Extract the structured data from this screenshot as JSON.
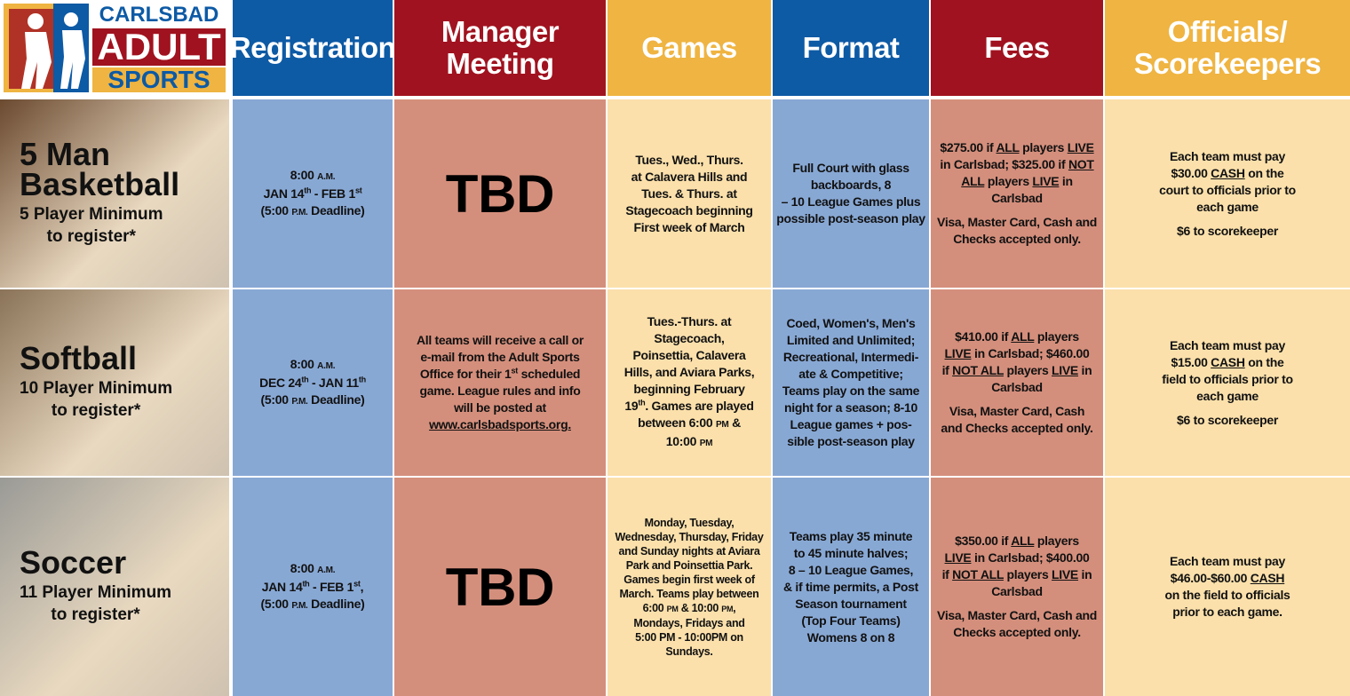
{
  "logo": {
    "lines": [
      "CARLSBAD",
      "ADULT",
      "SPORTS"
    ]
  },
  "columns": [
    [
      "Registration"
    ],
    [
      "Manager",
      "Meeting"
    ],
    [
      "Games"
    ],
    [
      "Format"
    ],
    [
      "Fees"
    ],
    [
      "Officials/",
      "Scorekeepers"
    ]
  ],
  "rows": [
    {
      "sport": [
        "5 Man",
        "Basketball"
      ],
      "note": [
        "5 Player Minimum",
        "to register*"
      ],
      "cells": [
        [
          [
            [
              "8:00 ",
              {
                "sc": "A.M."
              }
            ],
            [
              "JAN 14",
              {
                "sup": "th"
              },
              " - FEB 1",
              {
                "sup": "st"
              }
            ],
            [
              "(5:00 ",
              {
                "sc": "P.M."
              },
              " Deadline)"
            ]
          ]
        ],
        {
          "big": "TBD"
        },
        [
          [
            "Tues., Wed., Thurs.",
            "at Calavera Hills and",
            "Tues. & Thurs. at",
            "Stagecoach beginning",
            "First week of March"
          ]
        ],
        [
          [
            "Full Court with glass",
            "backboards, 8",
            "– 10 League Games plus",
            "possible post-season play"
          ]
        ],
        [
          [
            [
              "$275.00 if ",
              {
                "u": "ALL"
              },
              " players ",
              {
                "u": "LIVE"
              }
            ],
            [
              "in Carlsbad; $325.00 if ",
              {
                "u": "NOT"
              }
            ],
            [
              {
                "u": "ALL"
              },
              " players ",
              {
                "u": "LIVE"
              },
              " in Carlsbad"
            ]
          ],
          [
            "Visa, Master Card, Cash and",
            "Checks accepted only."
          ]
        ],
        [
          [
            "Each team must pay",
            [
              "$30.00 ",
              {
                "u": "CASH"
              },
              " on the"
            ],
            "court to officials prior to",
            "each game"
          ],
          [
            "$6 to scorekeeper"
          ]
        ]
      ]
    },
    {
      "sport": [
        "Softball"
      ],
      "note": [
        "10 Player Minimum",
        "to register*"
      ],
      "cells": [
        [
          [
            [
              "8:00 ",
              {
                "sc": "A.M."
              }
            ],
            [
              "DEC 24",
              {
                "sup": "th"
              },
              " - JAN 11",
              {
                "sup": "th"
              }
            ],
            [
              "(5:00 ",
              {
                "sc": "P.M."
              },
              " Deadline)"
            ]
          ]
        ],
        [
          [
            "All teams will receive a call or",
            "e-mail from the Adult Sports",
            [
              "Office for their 1",
              {
                "sup": "st"
              },
              " scheduled"
            ],
            "game. League rules and info",
            "will be posted at",
            [
              {
                "u": "www.carlsbadsports.org."
              }
            ]
          ]
        ],
        [
          [
            "Tues.-Thurs. at",
            "Stagecoach,",
            "Poinsettia, Calavera",
            "Hills, and Aviara Parks,",
            "beginning February",
            [
              "19",
              {
                "sup": "th"
              },
              ". Games are played"
            ],
            [
              "between 6:00 ",
              {
                "sc": "PM"
              },
              " &"
            ],
            [
              "10:00 ",
              {
                "sc": "PM"
              }
            ]
          ]
        ],
        [
          [
            "Coed, Women's, Men's",
            "Limited and Unlimited;",
            "Recreational, Intermedi-",
            "ate & Competitive;",
            "Teams play on the same",
            "night for a season; 8-10",
            "League games + pos-",
            "sible post-season play"
          ]
        ],
        [
          [
            [
              "$410.00 if ",
              {
                "u": "ALL"
              },
              " players"
            ],
            [
              {
                "u": "LIVE"
              },
              " in Carlsbad; $460.00"
            ],
            [
              "if ",
              {
                "u": "NOT ALL"
              },
              " players ",
              {
                "u": "LIVE"
              },
              " in"
            ],
            "Carlsbad"
          ],
          [
            "Visa, Master Card, Cash",
            "and Checks accepted only."
          ]
        ],
        [
          [
            "Each team must pay",
            [
              "$15.00 ",
              {
                "u": "CASH"
              },
              " on the"
            ],
            "field to officials prior to",
            "each game"
          ],
          [
            "$6 to scorekeeper"
          ]
        ]
      ]
    },
    {
      "sport": [
        "Soccer"
      ],
      "note": [
        "11 Player Minimum",
        "to register*"
      ],
      "cells": [
        [
          [
            [
              "8:00 ",
              {
                "sc": "A.M."
              }
            ],
            [
              "JAN 14",
              {
                "sup": "th"
              },
              " - FEB 1",
              {
                "sup": "st"
              },
              ","
            ],
            [
              "(5:00 ",
              {
                "sc": "P.M."
              },
              " Deadline)"
            ]
          ]
        ],
        {
          "big": "TBD"
        },
        [
          [
            "Monday, Tuesday,",
            "Wednesday, Thursday, Friday",
            "and Sunday nights at Aviara",
            "Park and Poinsettia Park.",
            "Games begin first week of",
            "March. Teams play between",
            [
              "6:00 ",
              {
                "sc": "PM"
              },
              " & 10:00 ",
              {
                "sc": "PM"
              },
              ","
            ],
            "Mondays, Fridays and",
            "5:00 PM - 10:00PM on",
            "Sundays."
          ]
        ],
        [
          [
            "Teams play 35 minute",
            "to 45 minute halves;",
            "8 – 10 League Games,",
            "& if time permits, a Post",
            "Season tournament",
            "(Top Four Teams)",
            "Womens 8 on 8"
          ]
        ],
        [
          [
            [
              "$350.00 if ",
              {
                "u": "ALL"
              },
              " players"
            ],
            [
              {
                "u": "LIVE"
              },
              " in Carlsbad; $400.00"
            ],
            [
              "if ",
              {
                "u": "NOT ALL"
              },
              " players ",
              {
                "u": "LIVE"
              },
              " in"
            ],
            "Carlsbad"
          ],
          [
            "Visa, Master Card, Cash and",
            "Checks accepted only."
          ]
        ],
        [
          [
            "Each team must pay",
            [
              "$46.00-$60.00 ",
              {
                "u": "CASH"
              }
            ],
            "on the field to officials",
            "prior to each game."
          ]
        ]
      ]
    }
  ]
}
